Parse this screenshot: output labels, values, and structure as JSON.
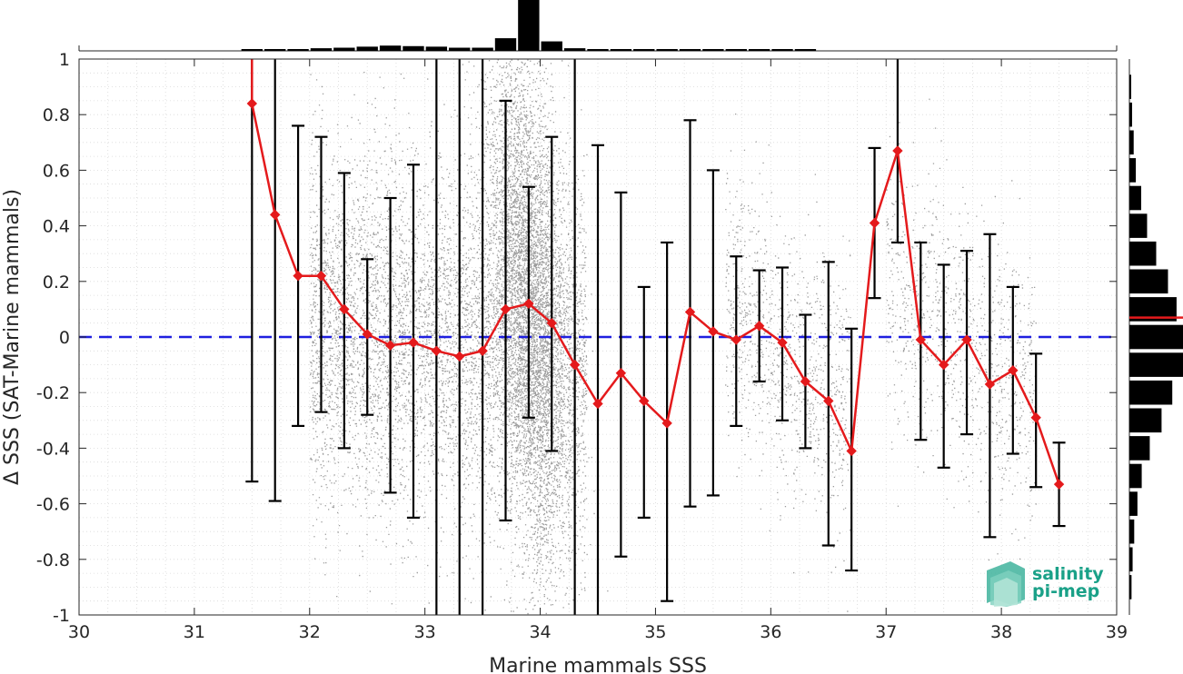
{
  "chart_data": {
    "type": "scatter",
    "xlabel": "Marine mammals SSS",
    "ylabel": "Δ SSS (SAT-Marine mammals)",
    "xlim": [
      30,
      39
    ],
    "ylim": [
      -1,
      1
    ],
    "x_ticks": [
      30,
      31,
      32,
      33,
      34,
      35,
      36,
      37,
      38,
      39
    ],
    "y_ticks": [
      -1,
      -0.8,
      -0.6,
      -0.4,
      -0.2,
      0,
      0.2,
      0.4,
      0.6,
      0.8,
      1
    ],
    "grid": true,
    "zero_line": 0,
    "mean_series": {
      "color": "#e41a1c",
      "x": [
        31.5,
        31.7,
        31.9,
        32.1,
        32.3,
        32.5,
        32.7,
        32.9,
        33.1,
        33.3,
        33.5,
        33.7,
        33.9,
        34.1,
        34.3,
        34.5,
        34.7,
        34.9,
        35.1,
        35.3,
        35.5,
        35.7,
        35.9,
        36.1,
        36.3,
        36.5,
        36.7,
        36.9,
        37.1,
        37.3,
        37.5,
        37.7,
        37.9,
        38.1,
        38.3,
        38.5
      ],
      "y": [
        0.84,
        0.44,
        0.22,
        0.22,
        0.1,
        0.01,
        -0.03,
        -0.02,
        -0.05,
        -0.07,
        -0.05,
        0.1,
        0.12,
        0.05,
        -0.1,
        -0.24,
        -0.13,
        -0.23,
        -0.31,
        0.09,
        0.02,
        -0.01,
        0.04,
        -0.02,
        -0.16,
        -0.23,
        -0.41,
        0.41,
        0.67,
        -0.01,
        -0.1,
        -0.01,
        -0.17,
        -0.12,
        -0.29,
        -0.53
      ],
      "err_low": [
        -0.52,
        -0.59,
        -0.32,
        -0.27,
        -0.4,
        -0.28,
        -0.56,
        -0.65,
        -1.1,
        -1.1,
        -1.1,
        -0.66,
        -0.29,
        -0.41,
        -1.1,
        -1.1,
        -0.79,
        -0.65,
        -0.95,
        -0.61,
        -0.57,
        -0.32,
        -0.16,
        -0.3,
        -0.4,
        -0.75,
        -0.84,
        0.14,
        0.34,
        -0.37,
        -0.47,
        -0.35,
        -0.72,
        -0.42,
        -0.54,
        -0.68
      ],
      "err_high": [
        1.1,
        1.1,
        0.76,
        0.72,
        0.59,
        0.28,
        0.5,
        0.62,
        1.1,
        1.1,
        1.1,
        0.85,
        0.54,
        0.72,
        1.1,
        0.69,
        0.52,
        0.18,
        0.34,
        0.78,
        0.6,
        0.29,
        0.24,
        0.25,
        0.08,
        0.27,
        0.03,
        0.68,
        1.1,
        0.34,
        0.26,
        0.31,
        0.37,
        0.18,
        -0.06,
        -0.38
      ]
    },
    "x_histogram": {
      "bins": [
        31.5,
        31.7,
        31.9,
        32.1,
        32.3,
        32.5,
        32.7,
        32.9,
        33.1,
        33.3,
        33.5,
        33.7,
        33.9,
        34.1,
        34.3,
        34.5,
        34.7,
        34.9,
        35.1,
        35.3,
        35.5,
        35.7,
        35.9,
        36.1,
        36.3
      ],
      "counts": [
        0.02,
        0.02,
        0.03,
        0.05,
        0.06,
        0.08,
        0.1,
        0.09,
        0.08,
        0.06,
        0.06,
        0.24,
        1.0,
        0.18,
        0.05,
        0.03,
        0.02,
        0.02,
        0.01,
        0.01,
        0.01,
        0.01,
        0.03,
        0.03,
        0.01
      ]
    },
    "y_histogram": {
      "bins": [
        0.9,
        0.8,
        0.7,
        0.6,
        0.5,
        0.4,
        0.3,
        0.2,
        0.1,
        0.0,
        -0.1,
        -0.2,
        -0.3,
        -0.4,
        -0.5,
        -0.6,
        -0.7,
        -0.8,
        -0.9
      ],
      "counts": [
        0.03,
        0.05,
        0.08,
        0.12,
        0.22,
        0.33,
        0.5,
        0.72,
        0.88,
        1.0,
        1.0,
        0.8,
        0.6,
        0.38,
        0.23,
        0.15,
        0.09,
        0.06,
        0.04
      ],
      "mean": 0.07,
      "mean_color": "#e41a1c"
    },
    "scatter_color": "#8a8a8a"
  },
  "logo": {
    "line1": "salinity",
    "line2": "pi-mep",
    "color": "#1aa188"
  }
}
